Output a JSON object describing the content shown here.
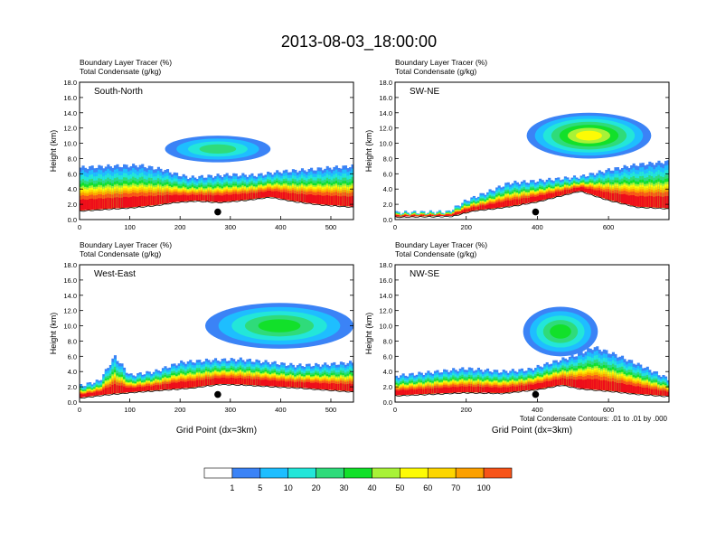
{
  "figure": {
    "title": "2013-08-03_18:00:00",
    "contour_note": "Total Condensate Contours: .01 to .01 by .000"
  },
  "colorbar": {
    "labels": [
      "1",
      "5",
      "10",
      "20",
      "30",
      "40",
      "50",
      "60",
      "70",
      "100"
    ],
    "colors": [
      "#ffffff",
      "#3b83f6",
      "#1ebeff",
      "#23e6d9",
      "#2fdb7a",
      "#12e02a",
      "#a8f238",
      "#fdfb05",
      "#fdd600",
      "#fca000",
      "#f75419",
      "#ee0d1a"
    ]
  },
  "chart_data": [
    {
      "type": "heatmap",
      "panel_label": "South-North",
      "field_labels": [
        "Boundary Layer Tracer   (%)",
        "Total Condensate   (g/kg)"
      ],
      "xlabel": "",
      "ylabel": "Height (km)",
      "xlim": [
        0,
        545
      ],
      "ylim": [
        0,
        18
      ],
      "x_ticks": [
        "0",
        "100",
        "200",
        "300",
        "400",
        "500"
      ],
      "y_ticks": [
        "0.0",
        "2.0",
        "4.0",
        "6.0",
        "8.0",
        "10.0",
        "12.0",
        "14.0",
        "16.0",
        "18.0"
      ],
      "location_marker_x": 275,
      "profile_top_km": [
        [
          0,
          6.8
        ],
        [
          60,
          7.0
        ],
        [
          120,
          7.1
        ],
        [
          170,
          6.5
        ],
        [
          190,
          6.0
        ],
        [
          220,
          5.5
        ],
        [
          260,
          5.7
        ],
        [
          300,
          5.9
        ],
        [
          350,
          5.8
        ],
        [
          400,
          6.3
        ],
        [
          450,
          6.5
        ],
        [
          500,
          6.8
        ],
        [
          545,
          7.0
        ]
      ],
      "terrain_km": [
        [
          0,
          1.2
        ],
        [
          50,
          1.4
        ],
        [
          100,
          1.6
        ],
        [
          150,
          1.9
        ],
        [
          190,
          2.3
        ],
        [
          230,
          2.5
        ],
        [
          280,
          2.3
        ],
        [
          330,
          2.6
        ],
        [
          380,
          3.0
        ],
        [
          430,
          2.4
        ],
        [
          480,
          2.0
        ],
        [
          545,
          1.7
        ]
      ],
      "upper_cloud": {
        "x_range": [
          170,
          380
        ],
        "z_range": [
          7.5,
          11.0
        ],
        "core_value": 20
      }
    },
    {
      "type": "heatmap",
      "panel_label": "SW-NE",
      "field_labels": [
        "Boundary Layer Tracer   (%)",
        "Total Condensate   (g/kg)"
      ],
      "xlabel": "",
      "ylabel": "Height (km)",
      "xlim": [
        0,
        770
      ],
      "ylim": [
        0,
        18
      ],
      "x_ticks": [
        "0",
        "200",
        "400",
        "600"
      ],
      "y_ticks": [
        "0.0",
        "2.0",
        "4.0",
        "6.0",
        "8.0",
        "10.0",
        "12.0",
        "14.0",
        "16.0",
        "18.0"
      ],
      "location_marker_x": 395,
      "profile_top_km": [
        [
          0,
          0.9
        ],
        [
          150,
          1.0
        ],
        [
          200,
          2.5
        ],
        [
          260,
          3.6
        ],
        [
          320,
          4.8
        ],
        [
          380,
          5.0
        ],
        [
          450,
          5.3
        ],
        [
          520,
          5.6
        ],
        [
          600,
          6.5
        ],
        [
          680,
          7.2
        ],
        [
          770,
          7.6
        ]
      ],
      "terrain_km": [
        [
          0,
          0.4
        ],
        [
          160,
          0.5
        ],
        [
          220,
          1.2
        ],
        [
          280,
          1.5
        ],
        [
          340,
          1.9
        ],
        [
          400,
          2.4
        ],
        [
          460,
          3.1
        ],
        [
          520,
          3.8
        ],
        [
          600,
          2.6
        ],
        [
          680,
          1.7
        ],
        [
          770,
          1.5
        ]
      ],
      "upper_cloud": {
        "x_range": [
          370,
          720
        ],
        "z_range": [
          8.0,
          14.0
        ],
        "core_value": 50
      }
    },
    {
      "type": "heatmap",
      "panel_label": "West-East",
      "field_labels": [
        "Boundary Layer Tracer   (%)",
        "Total Condensate   (g/kg)"
      ],
      "xlabel": "Grid Point (dx=3km)",
      "ylabel": "Height (km)",
      "xlim": [
        0,
        545
      ],
      "ylim": [
        0,
        18
      ],
      "x_ticks": [
        "0",
        "100",
        "200",
        "300",
        "400",
        "500"
      ],
      "y_ticks": [
        "0.0",
        "2.0",
        "4.0",
        "6.0",
        "8.0",
        "10.0",
        "12.0",
        "14.0",
        "16.0",
        "18.0"
      ],
      "location_marker_x": 275,
      "profile_top_km": [
        [
          0,
          2.1
        ],
        [
          40,
          2.8
        ],
        [
          70,
          6.0
        ],
        [
          100,
          3.5
        ],
        [
          150,
          4.0
        ],
        [
          200,
          5.2
        ],
        [
          260,
          5.5
        ],
        [
          320,
          5.6
        ],
        [
          380,
          5.2
        ],
        [
          430,
          4.8
        ],
        [
          480,
          4.9
        ],
        [
          545,
          5.2
        ]
      ],
      "terrain_km": [
        [
          0,
          0.6
        ],
        [
          50,
          1.0
        ],
        [
          100,
          1.3
        ],
        [
          160,
          1.6
        ],
        [
          220,
          1.9
        ],
        [
          280,
          2.4
        ],
        [
          330,
          2.3
        ],
        [
          380,
          2.1
        ],
        [
          440,
          1.9
        ],
        [
          500,
          1.6
        ],
        [
          545,
          1.4
        ]
      ],
      "upper_cloud": {
        "x_range": [
          250,
          545
        ],
        "z_range": [
          7.0,
          13.0
        ],
        "core_value": 30
      }
    },
    {
      "type": "heatmap",
      "panel_label": "NW-SE",
      "field_labels": [
        "Boundary Layer Tracer   (%)",
        "Total Condensate   (g/kg)"
      ],
      "xlabel": "Grid Point (dx=3km)",
      "ylabel": "Height (km)",
      "xlim": [
        0,
        770
      ],
      "ylim": [
        0,
        18
      ],
      "x_ticks": [
        "0",
        "200",
        "400",
        "600"
      ],
      "y_ticks": [
        "0.0",
        "2.0",
        "4.0",
        "6.0",
        "8.0",
        "10.0",
        "12.0",
        "14.0",
        "16.0",
        "18.0"
      ],
      "location_marker_x": 395,
      "profile_top_km": [
        [
          0,
          3.4
        ],
        [
          100,
          3.9
        ],
        [
          200,
          4.4
        ],
        [
          300,
          4.0
        ],
        [
          380,
          4.3
        ],
        [
          440,
          5.2
        ],
        [
          500,
          6.0
        ],
        [
          560,
          7.2
        ],
        [
          620,
          6.2
        ],
        [
          700,
          4.6
        ],
        [
          770,
          3.0
        ]
      ],
      "terrain_km": [
        [
          0,
          0.9
        ],
        [
          100,
          1.1
        ],
        [
          200,
          1.3
        ],
        [
          300,
          1.2
        ],
        [
          400,
          1.7
        ],
        [
          470,
          2.3
        ],
        [
          520,
          1.8
        ],
        [
          600,
          1.5
        ],
        [
          680,
          1.1
        ],
        [
          770,
          0.8
        ]
      ],
      "upper_cloud": {
        "x_range": [
          360,
          570
        ],
        "z_range": [
          6.0,
          12.5
        ],
        "core_value": 30
      }
    }
  ]
}
